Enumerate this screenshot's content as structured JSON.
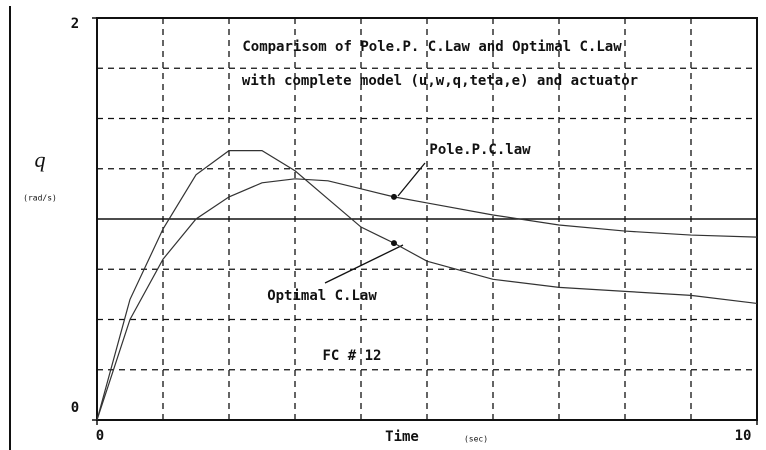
{
  "chart_data": {
    "type": "line",
    "title": [
      "Comparisom of Pole.P. C.Law and Optimal C.Law",
      "with complete model (u,w,q,teta,e) and actuator"
    ],
    "y_label": "q",
    "y_unit": "(rad/s)",
    "x_label": "Time",
    "x_unit": "(sec)",
    "annotations": [
      "Pole.P.C.law",
      "Optimal C.Law",
      "FC # 12"
    ],
    "x": [
      0,
      0.5,
      1,
      1.5,
      2,
      2.5,
      3,
      3.5,
      4,
      4.5,
      5,
      6,
      7,
      8,
      9,
      10
    ],
    "series": [
      {
        "name": "Pole.P.C.law",
        "color": "#333333",
        "values": [
          0,
          0.5,
          0.8,
          1.0,
          1.11,
          1.18,
          1.2,
          1.19,
          1.15,
          1.11,
          1.08,
          1.02,
          0.97,
          0.94,
          0.92,
          0.91
        ]
      },
      {
        "name": "Optimal C.Law",
        "color": "#333333",
        "values": [
          0,
          0.6,
          0.95,
          1.22,
          1.34,
          1.34,
          1.24,
          1.1,
          0.96,
          0.88,
          0.79,
          0.7,
          0.66,
          0.64,
          0.62,
          0.58
        ]
      }
    ],
    "xlim": [
      0,
      10
    ],
    "ylim": [
      0,
      2
    ],
    "xticks": [
      0,
      10
    ],
    "yticks": [
      0,
      2
    ],
    "xgrid": [
      1,
      2,
      3,
      4,
      5,
      6,
      7,
      8,
      9
    ],
    "ygrid": [
      0.25,
      0.5,
      0.75,
      1.25,
      1.5,
      1.75
    ],
    "hline": 1,
    "grid": true
  }
}
